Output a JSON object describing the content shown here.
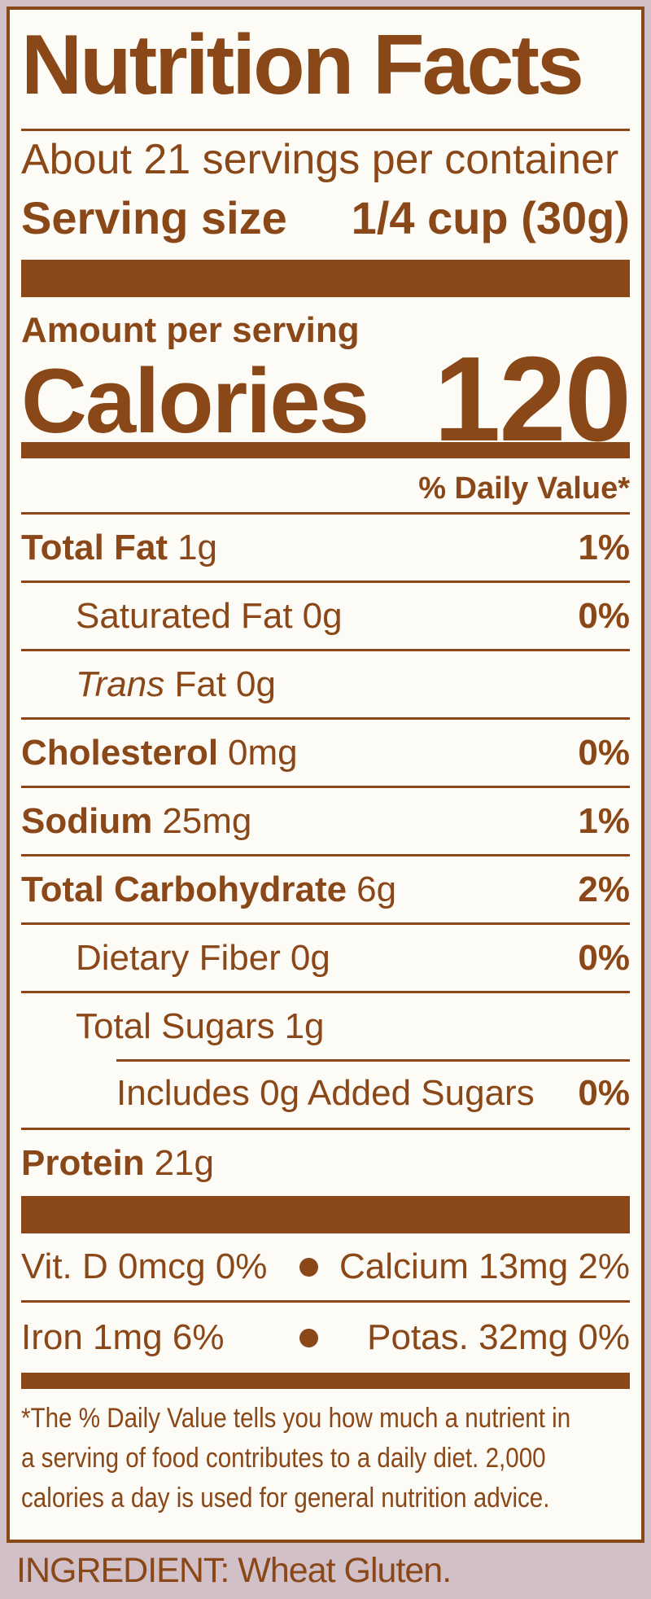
{
  "colors": {
    "brown": "#8a4718",
    "pink_background": "#d1c0c7",
    "label_background": "#fcfbf6"
  },
  "header": {
    "title": "Nutrition Facts",
    "servings_per_container": "About 21 servings per container",
    "serving_size_label": "Serving size",
    "serving_size_value": "1/4 cup (30g)"
  },
  "calories": {
    "amount_per_serving_label": "Amount per serving",
    "label": "Calories",
    "value": "120"
  },
  "daily_value_header": "% Daily Value*",
  "nutrients": [
    {
      "key": "total-fat",
      "label": "Total Fat",
      "value": "1g",
      "dv": "1%",
      "indent": 0,
      "bold": true
    },
    {
      "key": "saturated-fat",
      "label": "Saturated Fat",
      "value": "0g",
      "dv": "0%",
      "indent": 1,
      "bold": false
    },
    {
      "key": "trans-fat",
      "label_italic": "Trans",
      "label": " Fat",
      "value": "0g",
      "dv": "",
      "indent": 1,
      "bold": false
    },
    {
      "key": "cholesterol",
      "label": "Cholesterol",
      "value": "0mg",
      "dv": "0%",
      "indent": 0,
      "bold": true
    },
    {
      "key": "sodium",
      "label": "Sodium",
      "value": "25mg",
      "dv": "1%",
      "indent": 0,
      "bold": true
    },
    {
      "key": "total-carbohydrate",
      "label": "Total Carbohydrate",
      "value": "6g",
      "dv": "2%",
      "indent": 0,
      "bold": true
    },
    {
      "key": "dietary-fiber",
      "label": "Dietary Fiber",
      "value": "0g",
      "dv": "0%",
      "indent": 1,
      "bold": false
    },
    {
      "key": "total-sugars",
      "label": "Total Sugars",
      "value": "1g",
      "dv": "",
      "indent": 1,
      "bold": false
    },
    {
      "key": "added-sugars",
      "label": "Includes 0g Added Sugars",
      "value": "",
      "dv": "0%",
      "indent": 2,
      "bold": false,
      "partial_rule": true
    },
    {
      "key": "protein",
      "label": "Protein",
      "value": "21g",
      "dv": "",
      "indent": 0,
      "bold": true
    }
  ],
  "vitamins": [
    {
      "left": "Vit. D 0mcg 0%",
      "right": "Calcium 13mg 2%"
    },
    {
      "left": "Iron 1mg 6%",
      "right": "Potas. 32mg 0%"
    }
  ],
  "footnote_lines": [
    "*The % Daily Value tells you how much a nutrient in",
    "a serving of food contributes to a daily diet. 2,000",
    "calories a day is used for general nutrition advice."
  ],
  "ingredient": "INGREDIENT: Wheat Gluten."
}
